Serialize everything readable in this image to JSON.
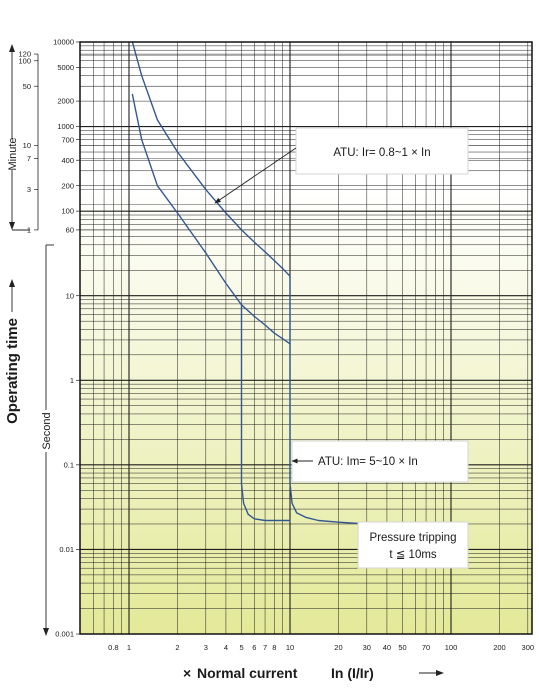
{
  "chart_data": {
    "type": "line",
    "title": "",
    "xscale": "log",
    "yscale": "log",
    "xlim": [
      0.6,
      300
    ],
    "ylim": [
      0.001,
      10000
    ],
    "grid": true,
    "xlabel": {
      "prefix": "×",
      "main": "Normal current",
      "unit": "In (I/Ir)"
    },
    "ylabel": "Operating time",
    "second_label": "Second",
    "minute_label": "Minute",
    "second_ticks": [
      {
        "v": 10000,
        "t": "10000"
      },
      {
        "v": 5000,
        "t": "5000"
      },
      {
        "v": 2000,
        "t": "2000"
      },
      {
        "v": 1000,
        "t": "1000"
      },
      {
        "v": 700,
        "t": "700"
      },
      {
        "v": 400,
        "t": "400"
      },
      {
        "v": 200,
        "t": "200"
      },
      {
        "v": 100,
        "t": "100"
      },
      {
        "v": 60,
        "t": "60"
      },
      {
        "v": 10,
        "t": "10"
      },
      {
        "v": 1,
        "t": "1"
      },
      {
        "v": 0.1,
        "t": "0.1"
      },
      {
        "v": 0.01,
        "t": "0.01"
      },
      {
        "v": 0.001,
        "t": "0.001"
      }
    ],
    "minute_ticks": [
      {
        "v": 120,
        "t": "120"
      },
      {
        "v": 100,
        "t": "100"
      },
      {
        "v": 50,
        "t": "50"
      },
      {
        "v": 10,
        "t": "10"
      },
      {
        "v": 7,
        "t": "7"
      },
      {
        "v": 3,
        "t": "3"
      },
      {
        "v": 1,
        "t": "1"
      }
    ],
    "x_ticks": [
      {
        "v": 0.8,
        "t": "0.8"
      },
      {
        "v": 1,
        "t": "1"
      },
      {
        "v": 2,
        "t": "2"
      },
      {
        "v": 3,
        "t": "3"
      },
      {
        "v": 4,
        "t": "4"
      },
      {
        "v": 5,
        "t": "5"
      },
      {
        "v": 6,
        "t": "6"
      },
      {
        "v": 7,
        "t": "7"
      },
      {
        "v": 8,
        "t": "8"
      },
      {
        "v": 10,
        "t": "10"
      },
      {
        "v": 20,
        "t": "20"
      },
      {
        "v": 30,
        "t": "30"
      },
      {
        "v": 40,
        "t": "40"
      },
      {
        "v": 50,
        "t": "50"
      },
      {
        "v": 70,
        "t": "70"
      },
      {
        "v": 100,
        "t": "100"
      },
      {
        "v": 200,
        "t": "200"
      },
      {
        "v": 300,
        "t": "300"
      }
    ],
    "series": [
      {
        "color": "#33578f",
        "x": [
          1.05,
          1.2,
          1.5,
          2,
          3,
          4,
          5,
          6,
          7,
          8,
          9,
          10
        ],
        "y": [
          10000,
          4000,
          1200,
          500,
          180,
          95,
          60,
          43,
          33,
          26,
          21,
          17
        ]
      },
      {
        "color": "#33578f",
        "x": [
          1.05,
          1.2,
          1.5,
          2,
          3,
          4,
          5,
          6,
          7,
          8,
          9,
          10
        ],
        "y": [
          2400,
          700,
          200,
          95,
          32,
          14,
          7.8,
          5.7,
          4.5,
          3.6,
          3.1,
          2.7
        ]
      },
      {
        "color": "#33578f",
        "x": [
          5,
          5,
          5.15,
          5.5,
          6,
          7,
          8,
          9,
          10
        ],
        "y": [
          7.8,
          0.06,
          0.035,
          0.026,
          0.023,
          0.022,
          0.022,
          0.022,
          0.022
        ]
      },
      {
        "color": "#33578f",
        "x": [
          10,
          10,
          10.3,
          11,
          12.5,
          15,
          20,
          30,
          40
        ],
        "y": [
          17,
          0.06,
          0.035,
          0.027,
          0.024,
          0.022,
          0.021,
          0.02,
          0.02
        ]
      }
    ],
    "annotations": [
      {
        "lines": [
          "ATU: Ir= 0.8~1 × In"
        ],
        "box": true
      },
      {
        "lines": [
          "ATU: Im= 5~10 × In"
        ],
        "box": true
      },
      {
        "lines": [
          "Pressure tripping",
          "t ≦ 10ms"
        ],
        "box": true
      }
    ],
    "colors": {
      "background_top": "#ffffff",
      "background_bottom": "#e3e998",
      "curve": "#33578f",
      "grid": "#1e1e1e"
    }
  }
}
